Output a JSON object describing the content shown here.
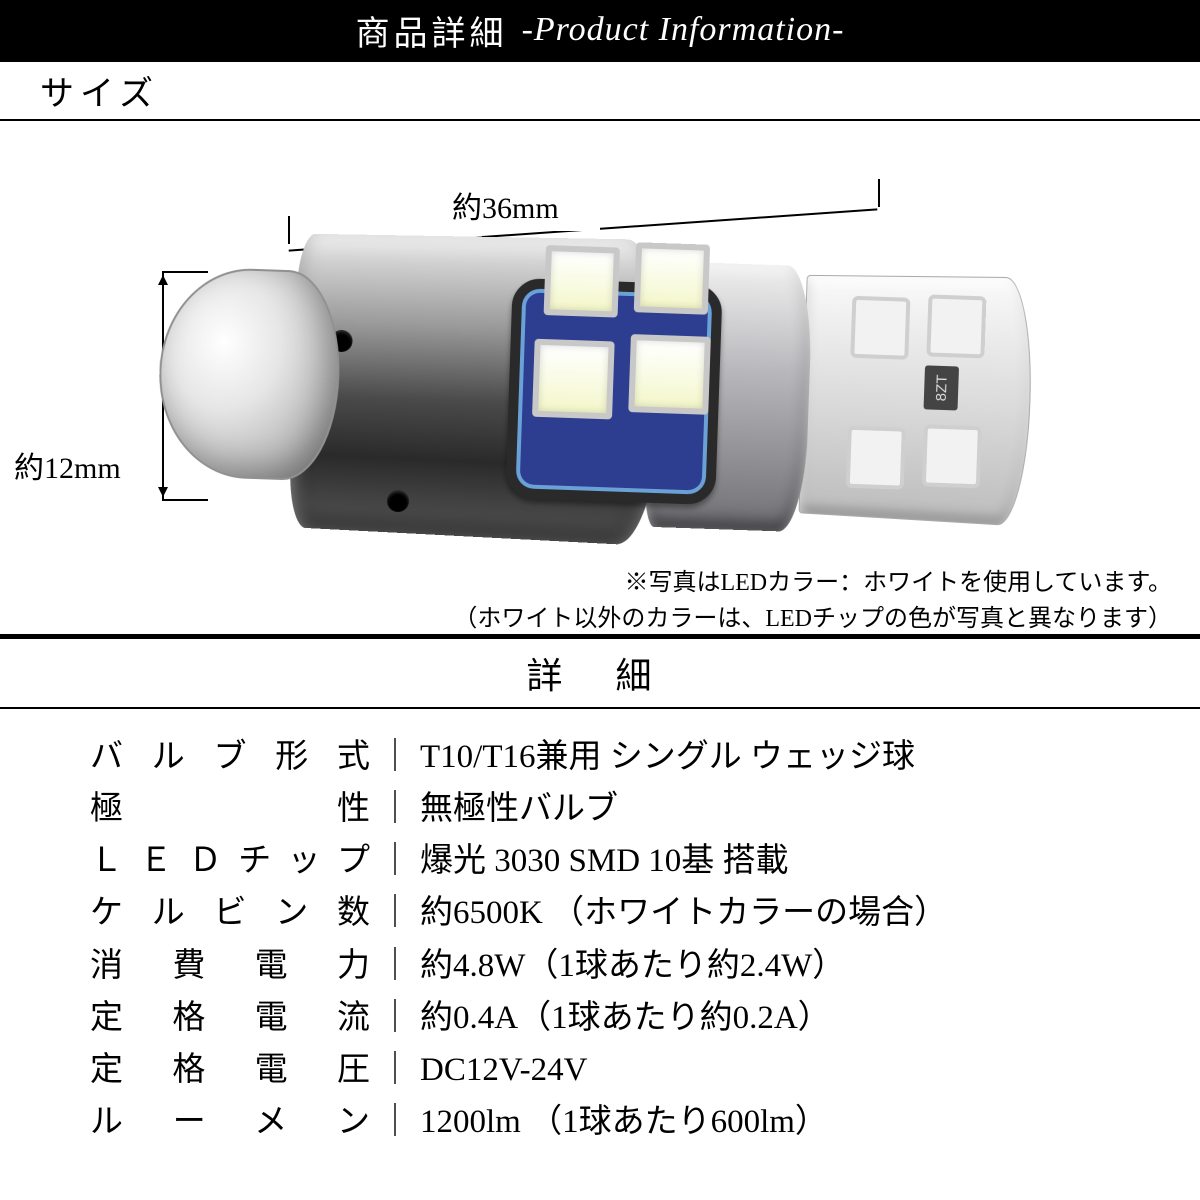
{
  "header": {
    "jp": "商品詳細",
    "en": "-Product Information-"
  },
  "size": {
    "label": "サイズ",
    "length_label": "約36mm",
    "diameter_label": "約12mm",
    "chip_marking": "8ZT"
  },
  "caption": {
    "line1": "※写真はLEDカラー：ホワイトを使用しています。",
    "line2": "（ホワイト以外のカラーは、LEDチップの色が写真と異なります）"
  },
  "details": {
    "heading": "詳 細",
    "rows": [
      {
        "label": "バルブ形式",
        "value": "T10/T16兼用 シングル ウェッジ球"
      },
      {
        "label": "極性",
        "value": "無極性バルブ"
      },
      {
        "label": "ＬＥＤチップ",
        "value": "爆光 3030 SMD 10基 搭載"
      },
      {
        "label": "ケルビン数",
        "value": "約6500K （ホワイトカラーの場合）"
      },
      {
        "label": "消費電力",
        "value": "約4.8W（1球あたり約2.4W）"
      },
      {
        "label": "定格電流",
        "value": "約0.4A（1球あたり約0.2A）"
      },
      {
        "label": "定格電圧",
        "value": "DC12V-24V"
      },
      {
        "label": "ルーメン",
        "value": "1200lm （1球あたり600lm）"
      }
    ]
  },
  "style": {
    "header_bg": "#000000",
    "header_fg": "#ffffff",
    "rule_color": "#000000",
    "body_bg": "#ffffff",
    "label_fontsize": 34,
    "spec_fontsize": 33,
    "caption_fontsize": 24,
    "detail_heading_fontsize": 36
  }
}
